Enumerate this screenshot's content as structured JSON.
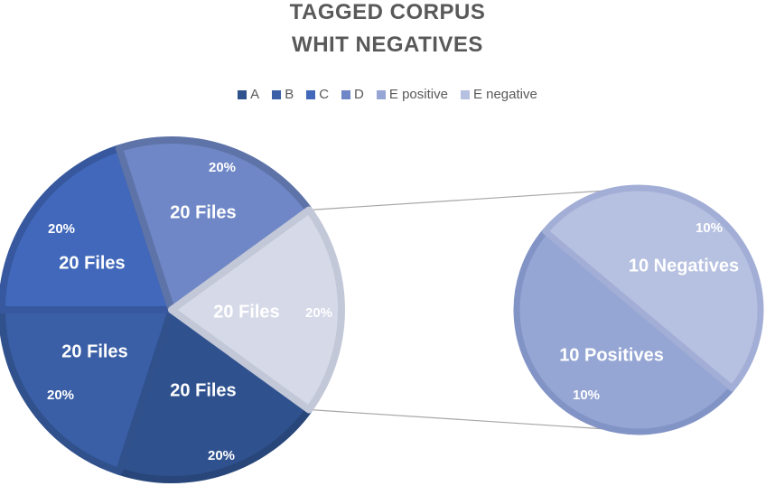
{
  "chart_data": {
    "type": "pie",
    "title": "TAGGED CORPUS",
    "subtitle": "WHIT NEGATIVES",
    "legend": [
      "A",
      "B",
      "C",
      "D",
      "E positive",
      "E negative"
    ],
    "legend_position": "top",
    "main_pie": [
      {
        "name": "A",
        "percent": 20,
        "label": "20 Files",
        "pct_label": "20%",
        "color": "#2f528f"
      },
      {
        "name": "B",
        "percent": 20,
        "label": "20 Files",
        "pct_label": "20%",
        "color": "#3a5fa6"
      },
      {
        "name": "C",
        "percent": 20,
        "label": "20 Files",
        "pct_label": "20%",
        "color": "#4168ba"
      },
      {
        "name": "D",
        "percent": 20,
        "label": "20 Files",
        "pct_label": "20%",
        "color": "#6f87c6"
      },
      {
        "name": "E",
        "percent": 20,
        "label": "20 Files",
        "pct_label": "20%",
        "color": "#d5d9e8",
        "exploded_to_secondary": true
      }
    ],
    "secondary_pie": [
      {
        "name": "E positive",
        "percent": 10,
        "label": "10 Positives",
        "pct_label": "10%",
        "color": "#95a6d4"
      },
      {
        "name": "E negative",
        "percent": 10,
        "label": "10 Negatives",
        "pct_label": "10%",
        "color": "#b6c0e0"
      }
    ]
  },
  "legend_colors": [
    "#2f528f",
    "#3a5fa6",
    "#4168ba",
    "#6f87c6",
    "#95a6d4",
    "#b6c0e0"
  ],
  "accent_color": "#595959"
}
